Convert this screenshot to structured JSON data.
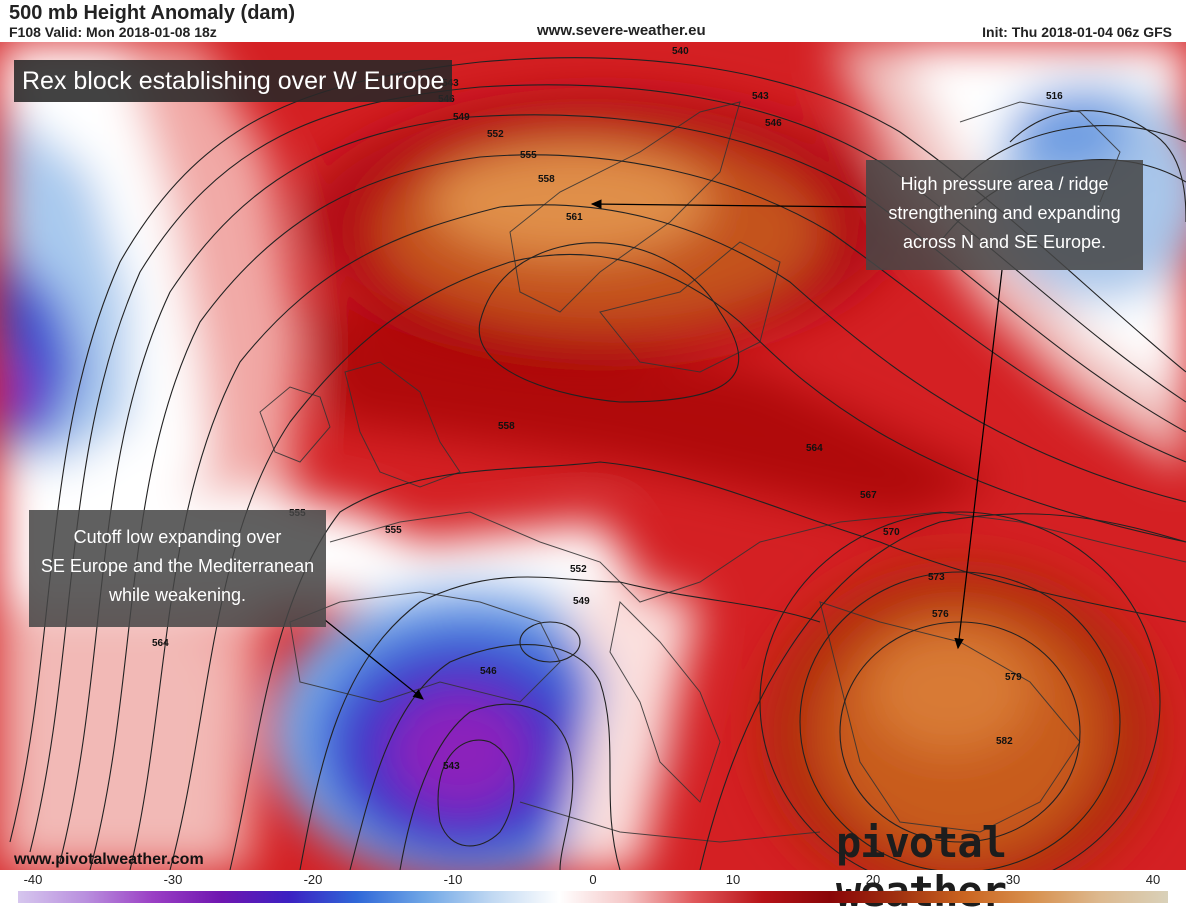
{
  "header": {
    "title": "500 mb Height Anomaly (dam)",
    "valid": "F108 Valid: Mon 2018-01-08 18z",
    "site": "www.severe-weather.eu",
    "init": "Init: Thu 2018-01-04 06z GFS"
  },
  "annotations": {
    "title": "Rex block establishing over W Europe",
    "high": [
      "High pressure area / ridge",
      "strengthening and expanding",
      "across N and SE Europe."
    ],
    "low": [
      "Cutoff low expanding over",
      "SE Europe and the Mediterranean",
      "while weakening."
    ]
  },
  "contour_labels": [
    "540",
    "543",
    "546",
    "549",
    "552",
    "555",
    "558",
    "561",
    "543",
    "546",
    "516",
    "558",
    "564",
    "567",
    "570",
    "573",
    "576",
    "579",
    "582",
    "555",
    "555",
    "552",
    "549",
    "546",
    "543",
    "564"
  ],
  "colorbar": {
    "ticks": [
      "-40",
      "-30",
      "-20",
      "-10",
      "0",
      "10",
      "20",
      "30",
      "40"
    ],
    "colors": [
      "#d6c6ee",
      "#b98fde",
      "#9a3ec4",
      "#6f16b0",
      "#3c20c2",
      "#2f67d8",
      "#6fa6e6",
      "#c0d8f2",
      "#ffffff",
      "#f5c7c7",
      "#e0575a",
      "#b81318",
      "#8a0508",
      "#a0300f",
      "#cb6520",
      "#d8914f",
      "#ddb98f",
      "#d9d1b9"
    ]
  },
  "watermark": "pivotal weather",
  "watermark_url": "www.pivotalweather.com"
}
